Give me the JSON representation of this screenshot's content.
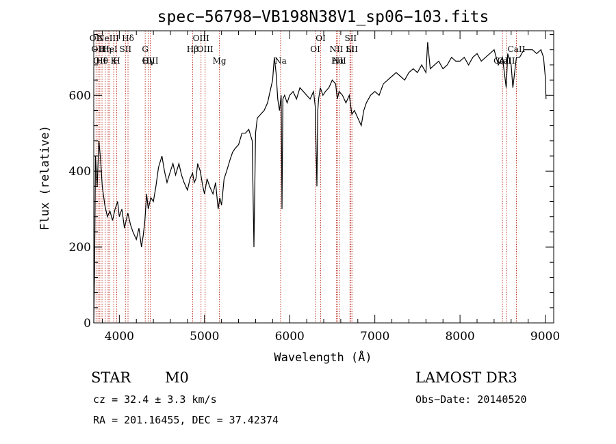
{
  "chart_data": {
    "type": "line",
    "title": "spec−56798−VB198N38V1_sp06−103.fits",
    "xlabel": "Wavelength (Å)",
    "ylabel": "Flux (relative)",
    "xlim": [
      3700,
      9100
    ],
    "ylim": [
      0,
      770
    ],
    "x_ticks": [
      4000,
      5000,
      6000,
      7000,
      8000,
      9000
    ],
    "y_ticks": [
      0,
      200,
      400,
      600
    ],
    "grid": false,
    "colors": {
      "spectrum": "#000000",
      "line_markers": "#c0392b"
    },
    "series": [
      {
        "x": [
          3700,
          3710,
          3720,
          3740,
          3760,
          3780,
          3800,
          3830,
          3860,
          3890,
          3920,
          3950,
          3980,
          4000,
          4030,
          4060,
          4100,
          4130,
          4160,
          4200,
          4230,
          4260,
          4280,
          4300,
          4320,
          4340,
          4370,
          4400,
          4430,
          4460,
          4500,
          4530,
          4560,
          4600,
          4630,
          4660,
          4700,
          4730,
          4760,
          4800,
          4830,
          4860,
          4880,
          4900,
          4920,
          4950,
          4980,
          5000,
          5030,
          5060,
          5100,
          5130,
          5160,
          5180,
          5200,
          5230,
          5260,
          5300,
          5330,
          5360,
          5400,
          5440,
          5480,
          5520,
          5560,
          5580,
          5600,
          5620,
          5660,
          5700,
          5740,
          5780,
          5800,
          5820,
          5840,
          5860,
          5880,
          5900,
          5910,
          5920,
          5940,
          5970,
          6000,
          6040,
          6080,
          6120,
          6160,
          6200,
          6240,
          6280,
          6300,
          6320,
          6330,
          6340,
          6360,
          6390,
          6420,
          6460,
          6500,
          6540,
          6560,
          6580,
          6620,
          6660,
          6700,
          6730,
          6760,
          6800,
          6840,
          6870,
          6900,
          6950,
          7000,
          7050,
          7100,
          7150,
          7200,
          7250,
          7300,
          7350,
          7400,
          7450,
          7500,
          7550,
          7600,
          7620,
          7650,
          7700,
          7750,
          7800,
          7850,
          7900,
          7950,
          8000,
          8050,
          8100,
          8150,
          8200,
          8250,
          8300,
          8350,
          8400,
          8450,
          8498,
          8542,
          8560,
          8600,
          8620,
          8662,
          8700,
          8750,
          8800,
          8850,
          8900,
          8950,
          8980,
          9000,
          9010
        ],
        "y": [
          0,
          150,
          440,
          360,
          480,
          430,
          360,
          310,
          280,
          295,
          270,
          300,
          320,
          280,
          300,
          250,
          290,
          260,
          240,
          220,
          250,
          200,
          230,
          270,
          340,
          300,
          330,
          320,
          360,
          410,
          440,
          400,
          370,
          400,
          420,
          390,
          420,
          390,
          370,
          350,
          380,
          395,
          370,
          380,
          420,
          400,
          360,
          340,
          380,
          360,
          340,
          370,
          300,
          330,
          310,
          380,
          400,
          430,
          450,
          460,
          470,
          500,
          500,
          510,
          480,
          200,
          500,
          540,
          550,
          560,
          580,
          620,
          640,
          700,
          660,
          590,
          560,
          600,
          300,
          590,
          600,
          580,
          600,
          610,
          590,
          620,
          610,
          600,
          590,
          610,
          570,
          360,
          560,
          590,
          620,
          600,
          610,
          620,
          640,
          630,
          590,
          610,
          600,
          580,
          600,
          550,
          560,
          540,
          520,
          560,
          580,
          600,
          610,
          600,
          630,
          640,
          650,
          660,
          650,
          640,
          660,
          670,
          660,
          680,
          660,
          740,
          670,
          680,
          690,
          670,
          680,
          700,
          690,
          690,
          700,
          680,
          700,
          710,
          690,
          700,
          710,
          720,
          680,
          700,
          620,
          710,
          680,
          620,
          700,
          700,
          720,
          720,
          720,
          710,
          720,
          700,
          650,
          590
        ]
      }
    ],
    "line_markers": [
      {
        "x": 3727,
        "label": "OII"
      },
      {
        "x": 3750,
        "label": "OII"
      },
      {
        "x": 3771,
        "label": "OII"
      },
      {
        "x": 3797,
        "label": "Hθ"
      },
      {
        "x": 3835,
        "label": "Hη"
      },
      {
        "x": 3869,
        "label": "NeIII"
      },
      {
        "x": 3889,
        "label": "HeI"
      },
      {
        "x": 3934,
        "label": "K"
      },
      {
        "x": 3969,
        "label": "H"
      },
      {
        "x": 4072,
        "label": "SII"
      },
      {
        "x": 4102,
        "label": "Hδ"
      },
      {
        "x": 4304,
        "label": "G"
      },
      {
        "x": 4341,
        "label": "Hγ"
      },
      {
        "x": 4363,
        "label": "OIII"
      },
      {
        "x": 4861,
        "label": "Hβ"
      },
      {
        "x": 4959,
        "label": "OIII"
      },
      {
        "x": 5007,
        "label": "OIII"
      },
      {
        "x": 5175,
        "label": "Mg"
      },
      {
        "x": 5893,
        "label": "Na"
      },
      {
        "x": 6300,
        "label": "OI"
      },
      {
        "x": 6364,
        "label": "OI"
      },
      {
        "x": 6548,
        "label": "NII"
      },
      {
        "x": 6563,
        "label": "Hα"
      },
      {
        "x": 6583,
        "label": "NII"
      },
      {
        "x": 6708,
        "label": "Li"
      },
      {
        "x": 6716,
        "label": "SII"
      },
      {
        "x": 6731,
        "label": "SII"
      },
      {
        "x": 8498,
        "label": "CaII"
      },
      {
        "x": 8542,
        "label": "CaII"
      },
      {
        "x": 8662,
        "label": "CaII"
      }
    ]
  },
  "info": {
    "class": "STAR",
    "subclass": "M0",
    "cz": "cz = 32.4 ± 3.3 km/s",
    "radec": "RA = 201.16455, DEC =  37.42374",
    "survey": "LAMOST DR3",
    "obs_date": "Obs−Date: 20140520"
  }
}
